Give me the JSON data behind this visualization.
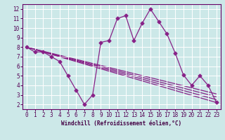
{
  "xlabel": "Windchill (Refroidissement éolien,°C)",
  "bg_color": "#cce8e8",
  "line_color": "#882288",
  "grid_color": "#ffffff",
  "ylim": [
    1.5,
    12.5
  ],
  "xlim": [
    -0.5,
    23.5
  ],
  "yticks": [
    2,
    3,
    4,
    5,
    6,
    7,
    8,
    9,
    10,
    11,
    12
  ],
  "xticks": [
    0,
    1,
    2,
    3,
    4,
    5,
    6,
    7,
    8,
    9,
    10,
    11,
    12,
    13,
    14,
    15,
    16,
    17,
    18,
    19,
    20,
    21,
    22,
    23
  ],
  "main_x": [
    0,
    1,
    2,
    3,
    4,
    5,
    6,
    7,
    8,
    9,
    10,
    11,
    12,
    13,
    14,
    15,
    16,
    17,
    18,
    19,
    20,
    21,
    22,
    23
  ],
  "main_y": [
    8.0,
    7.5,
    7.5,
    7.0,
    6.5,
    5.0,
    3.5,
    2.0,
    3.0,
    8.5,
    8.7,
    11.0,
    11.3,
    8.7,
    10.5,
    12.0,
    10.7,
    9.4,
    7.4,
    5.1,
    4.0,
    5.0,
    4.0,
    2.2
  ],
  "straight_lines": [
    {
      "x": [
        0,
        23
      ],
      "y": [
        8.0,
        2.2
      ]
    },
    {
      "x": [
        0,
        23
      ],
      "y": [
        8.0,
        2.5
      ]
    },
    {
      "x": [
        0,
        23
      ],
      "y": [
        8.0,
        2.8
      ]
    },
    {
      "x": [
        0,
        23
      ],
      "y": [
        8.0,
        3.1
      ]
    }
  ],
  "markersize": 2.5,
  "linewidth": 0.9,
  "tick_fontsize": 5.5,
  "xlabel_fontsize": 5.5
}
